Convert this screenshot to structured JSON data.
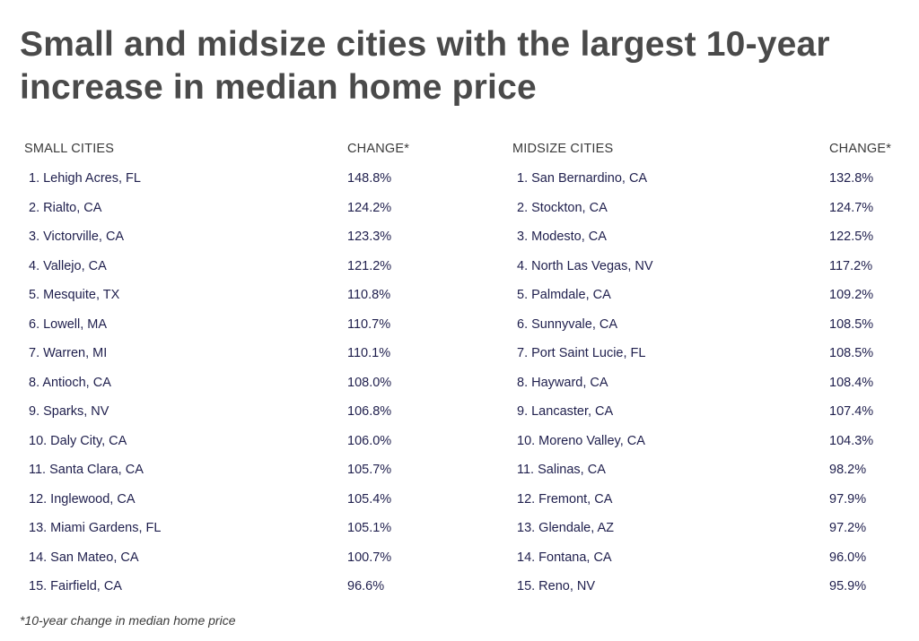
{
  "title": "Small and midsize cities with the largest 10-year increase in median home price",
  "small": {
    "header": "SMALL CITIES",
    "change_header": "CHANGE*",
    "rows": [
      {
        "name": "1. Lehigh Acres, FL",
        "change": "148.8%"
      },
      {
        "name": "2. Rialto, CA",
        "change": "124.2%"
      },
      {
        "name": "3. Victorville, CA",
        "change": "123.3%"
      },
      {
        "name": "4. Vallejo, CA",
        "change": "121.2%"
      },
      {
        "name": "5. Mesquite, TX",
        "change": "110.8%"
      },
      {
        "name": "6. Lowell, MA",
        "change": "110.7%"
      },
      {
        "name": "7. Warren, MI",
        "change": "110.1%"
      },
      {
        "name": "8. Antioch, CA",
        "change": "108.0%"
      },
      {
        "name": "9. Sparks, NV",
        "change": "106.8%"
      },
      {
        "name": "10. Daly City, CA",
        "change": "106.0%"
      },
      {
        "name": "11. Santa Clara, CA",
        "change": "105.7%"
      },
      {
        "name": "12. Inglewood, CA",
        "change": "105.4%"
      },
      {
        "name": "13. Miami Gardens, FL",
        "change": "105.1%"
      },
      {
        "name": "14. San Mateo, CA",
        "change": "100.7%"
      },
      {
        "name": "15. Fairfield, CA",
        "change": "96.6%"
      }
    ]
  },
  "midsize": {
    "header": "MIDSIZE CITIES",
    "change_header": "CHANGE*",
    "rows": [
      {
        "name": "1. San Bernardino, CA",
        "change": "132.8%"
      },
      {
        "name": "2. Stockton, CA",
        "change": "124.7%"
      },
      {
        "name": "3. Modesto, CA",
        "change": "122.5%"
      },
      {
        "name": "4. North Las Vegas, NV",
        "change": "117.2%"
      },
      {
        "name": "5. Palmdale, CA",
        "change": "109.2%"
      },
      {
        "name": "6. Sunnyvale, CA",
        "change": "108.5%"
      },
      {
        "name": "7. Port Saint Lucie, FL",
        "change": "108.5%"
      },
      {
        "name": "8. Hayward, CA",
        "change": "108.4%"
      },
      {
        "name": "9. Lancaster, CA",
        "change": "107.4%"
      },
      {
        "name": "10. Moreno Valley, CA",
        "change": "104.3%"
      },
      {
        "name": "11. Salinas, CA",
        "change": "98.2%"
      },
      {
        "name": "12. Fremont, CA",
        "change": "97.9%"
      },
      {
        "name": "13. Glendale, AZ",
        "change": "97.2%"
      },
      {
        "name": "14. Fontana, CA",
        "change": "96.0%"
      },
      {
        "name": "15. Reno, NV",
        "change": "95.9%"
      }
    ]
  },
  "footnote": "*10-year change in median home price"
}
